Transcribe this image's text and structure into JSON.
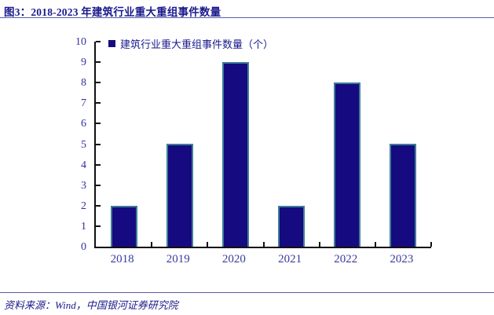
{
  "header": {
    "title": "图3：2018-2023 年建筑行业重大重组事件数量"
  },
  "footer": {
    "source": "资料来源：Wind，中国银河证券研究院"
  },
  "colors": {
    "title_text": "#1a1a8c",
    "bar_fill": "#150a80",
    "bar_border": "#3f7d99",
    "axis_line": "#111111",
    "tick_label": "#3232a0",
    "rule_line": "#5c5caa"
  },
  "chart_data": {
    "type": "bar",
    "title": "图3：2018-2023 年建筑行业重大重组事件数量",
    "legend": "建筑行业重大重组事件数量（个）",
    "legend_position": "top-left-inside",
    "categories": [
      "2018",
      "2019",
      "2020",
      "2021",
      "2022",
      "2023"
    ],
    "values": [
      2,
      5,
      9,
      2,
      8,
      5
    ],
    "xlabel": "",
    "ylabel": "",
    "ylim": [
      0,
      10
    ],
    "yticks": [
      0,
      1,
      2,
      3,
      4,
      5,
      6,
      7,
      8,
      9,
      10
    ],
    "grid": false
  }
}
